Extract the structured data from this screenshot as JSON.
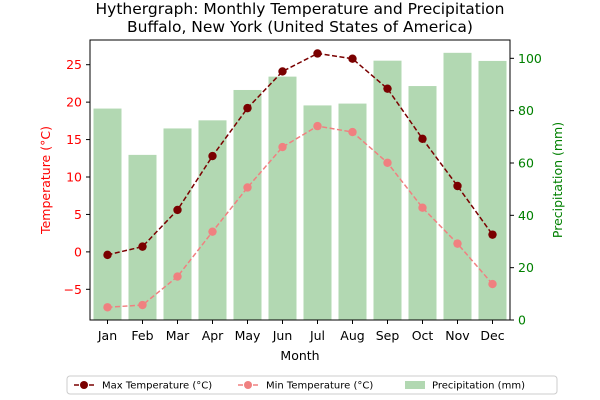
{
  "chart_data": {
    "type": "bar+line",
    "title": "Hythergraph: Monthly Temperature and Precipitation",
    "subtitle": "Buffalo, New York (United States of America)",
    "xlabel": "Month",
    "ylabel_left": "Temperature (°C)",
    "ylabel_right": "Precipitation (mm)",
    "categories": [
      "Jan",
      "Feb",
      "Mar",
      "Apr",
      "May",
      "Jun",
      "Jul",
      "Aug",
      "Sep",
      "Oct",
      "Nov",
      "Dec"
    ],
    "ylim_left": [
      -9.1,
      28.3
    ],
    "ylim_right": [
      0,
      107
    ],
    "yticks_left": [
      -5,
      0,
      5,
      10,
      15,
      20,
      25
    ],
    "yticks_right": [
      0,
      20,
      40,
      60,
      80,
      100
    ],
    "series": [
      {
        "name": "Max Temperature (°C)",
        "type": "line",
        "axis": "left",
        "color": "#7a0000",
        "style": "dashed-marker",
        "values": [
          -0.4,
          0.7,
          5.6,
          12.8,
          19.2,
          24.1,
          26.5,
          25.8,
          21.8,
          15.1,
          8.8,
          2.3
        ]
      },
      {
        "name": "Min Temperature (°C)",
        "type": "line",
        "axis": "left",
        "color": "#f08080",
        "style": "dashed-marker",
        "values": [
          -7.4,
          -7.1,
          -3.3,
          2.7,
          8.6,
          14.0,
          16.8,
          16.0,
          11.9,
          5.9,
          1.1,
          -4.3
        ]
      },
      {
        "name": "Precipitation (mm)",
        "type": "bar",
        "axis": "right",
        "color": "#b2d8b2",
        "values": [
          80.8,
          63.1,
          73.2,
          76.3,
          87.9,
          93.0,
          82.0,
          82.7,
          99.1,
          89.4,
          102.1,
          99.0
        ]
      }
    ],
    "legend_position": "bottom",
    "grid": false,
    "colors": {
      "left_axis": "#ff0000",
      "right_axis": "#008000"
    }
  }
}
